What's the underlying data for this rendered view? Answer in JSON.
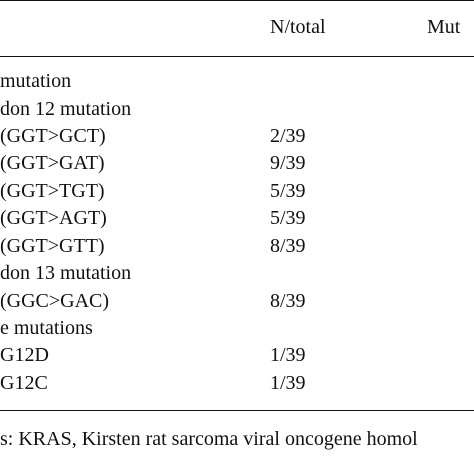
{
  "header": {
    "ntotal": "N/total",
    "mutation_col": "Mut"
  },
  "rows": [
    {
      "label": "mutation",
      "value": ""
    },
    {
      "label": "don 12 mutation",
      "value": ""
    },
    {
      "label": "(GGT>GCT)",
      "value": "2/39"
    },
    {
      "label": "(GGT>GAT)",
      "value": "9/39"
    },
    {
      "label": "(GGT>TGT)",
      "value": "5/39"
    },
    {
      "label": "(GGT>AGT)",
      "value": "5/39"
    },
    {
      "label": "(GGT>GTT)",
      "value": "8/39"
    },
    {
      "label": "don 13 mutation",
      "value": ""
    },
    {
      "label": "(GGC>GAC)",
      "value": "8/39"
    },
    {
      "label": "e mutations",
      "value": ""
    },
    {
      "label": "G12D",
      "value": "1/39"
    },
    {
      "label": "G12C",
      "value": "1/39"
    }
  ],
  "footnote": "s: KRAS, Kirsten rat sarcoma viral oncogene homol"
}
